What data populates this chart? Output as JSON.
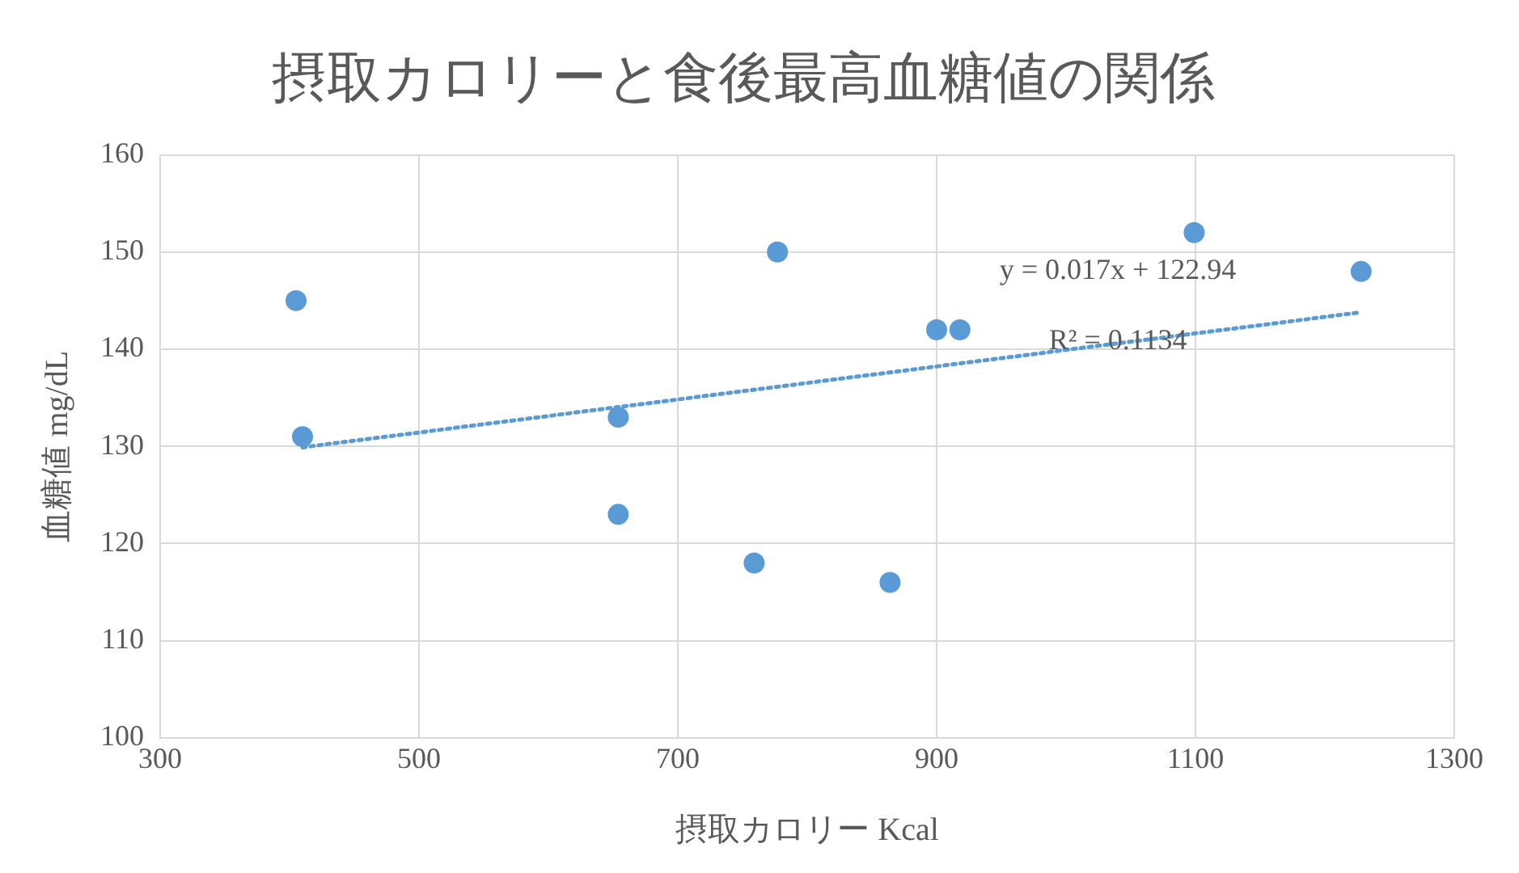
{
  "chart_data": {
    "type": "scatter",
    "title": "摂取カロリーと食後最高血糖値の関係",
    "xlabel": "摂取カロリー Kcal",
    "ylabel": "血糖値 mg/dL",
    "xlim": [
      300,
      1300
    ],
    "xticks": [
      300,
      500,
      700,
      900,
      1100,
      1300
    ],
    "ylim": [
      100,
      160
    ],
    "yticks": [
      100,
      110,
      120,
      130,
      140,
      150,
      160
    ],
    "grid": true,
    "marker": "circle",
    "legend": false,
    "series": [
      {
        "color": "#5b9bd5",
        "x": [
          405,
          410,
          654,
          654,
          759,
          777,
          864,
          900,
          918,
          1099,
          1228
        ],
        "values": [
          145,
          131,
          133,
          123,
          118,
          150,
          116,
          142,
          142,
          152,
          148
        ]
      },
      {
        "type": "line",
        "color": "#5b9bd5",
        "line_style": "dotted",
        "marker": "none",
        "x": [
          410,
          1228
        ],
        "values": [
          129.9,
          143.8
        ]
      }
    ],
    "annotations": [
      "y = 0.017x + 122.94",
      "R² = 0.1134"
    ]
  }
}
